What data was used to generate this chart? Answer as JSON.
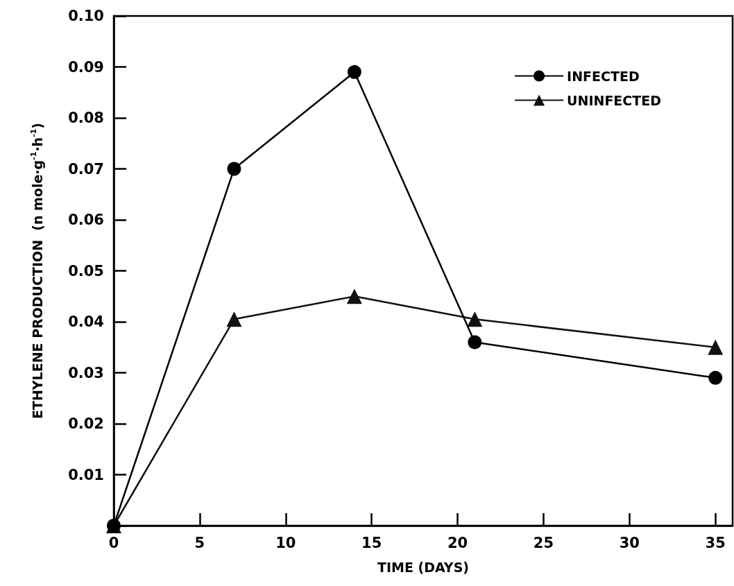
{
  "chart_data": {
    "type": "line",
    "xlabel": "TIME (DAYS)",
    "ylabel": "ETHYLENE PRODUCTION  (n mole·g$^{-1}$·h$^{-1}$)",
    "x": [
      0,
      7,
      14,
      21,
      35
    ],
    "series": [
      {
        "name": "INFECTED",
        "color": "#000000",
        "marker": "circle",
        "values": [
          0,
          0.07,
          0.089,
          0.036,
          0.029
        ]
      },
      {
        "name": "UNINFECTED",
        "color": "#111111",
        "marker": "triangle",
        "values": [
          0,
          0.0405,
          0.045,
          0.0405,
          0.035
        ]
      }
    ],
    "xlim": [
      0,
      36
    ],
    "xticks": [
      0,
      5,
      10,
      15,
      20,
      25,
      30,
      35
    ],
    "ylim": [
      0,
      0.1
    ],
    "yticks": [
      {
        "value": 0,
        "label": null
      },
      0.01,
      0.02,
      0.03,
      0.04,
      0.05,
      0.06,
      0.07,
      0.08,
      0.09,
      {
        "value": 0.1,
        "label": "0.10"
      }
    ],
    "legend": "top right",
    "grid": false,
    "line_style": "solid"
  }
}
